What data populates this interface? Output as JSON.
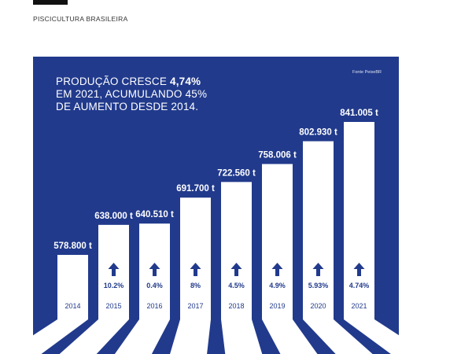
{
  "header": {
    "section_label": "PISCICULTURA BRASILEIRA"
  },
  "panel": {
    "headline_line1_pre": "PRODUÇÃO CRESCE ",
    "headline_line1_bold": "4,74%",
    "headline_line2": "EM 2021, ACUMULANDO 45%",
    "headline_line3": "DE AUMENTO DESDE 2014.",
    "source": "Fonte PeixeBR"
  },
  "colors": {
    "background": "#213a8c",
    "bar": "#ffffff",
    "text_light": "#ffffff"
  },
  "chart_data": {
    "type": "bar",
    "categories": [
      "2014",
      "2015",
      "2016",
      "2017",
      "2018",
      "2019",
      "2020",
      "2021"
    ],
    "values": [
      578800,
      638000,
      640510,
      691700,
      722560,
      758006,
      802930,
      841005
    ],
    "value_labels": [
      "578.800 t",
      "638.000 t",
      "640.510 t",
      "691.700 t",
      "722.560 t",
      "758.006 t",
      "802.930 t",
      "841.005 t"
    ],
    "growth_labels": [
      "",
      "10.2%",
      "0.4%",
      "8%",
      "4.5%",
      "4.9%",
      "5.93%",
      "4.74%"
    ],
    "growth_icon": "up-arrow-icon",
    "ylim": [
      0,
      841005
    ]
  }
}
